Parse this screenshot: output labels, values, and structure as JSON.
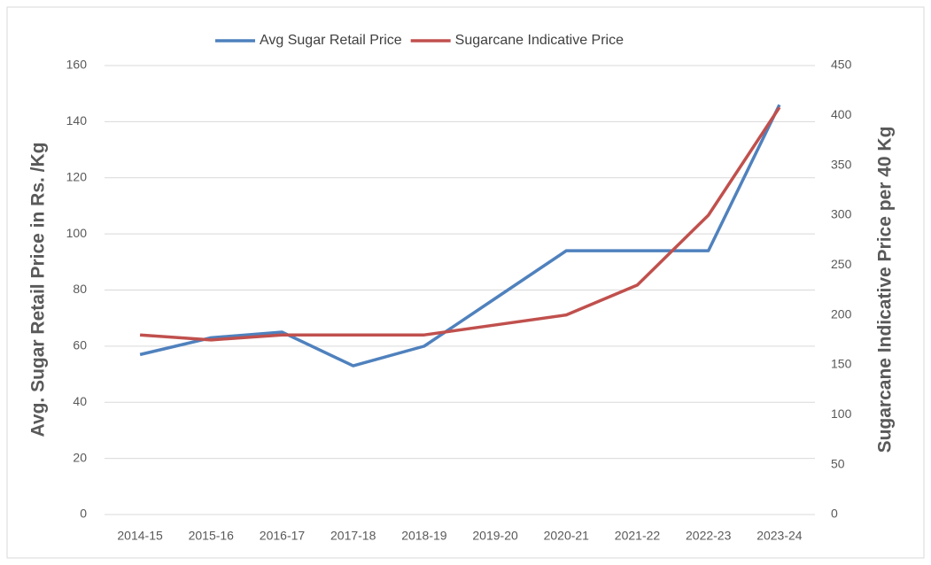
{
  "chart_data": {
    "type": "line",
    "categories": [
      "2014-15",
      "2015-16",
      "2016-17",
      "2017-18",
      "2018-19",
      "2019-20",
      "2020-21",
      "2021-22",
      "2022-23",
      "2023-24"
    ],
    "series": [
      {
        "name": "Avg Sugar Retail Price",
        "color": "#4f81bd",
        "values": [
          57,
          63,
          65,
          53,
          60,
          77,
          94,
          94,
          94,
          146
        ]
      },
      {
        "name": "Sugarcane Indicative Price",
        "color": "#c0504d",
        "axis": "y2",
        "values": [
          180,
          175,
          180,
          180,
          180,
          190,
          200,
          230,
          300,
          408
        ]
      }
    ],
    "ylabel": "Avg. Sugar Retail Price in Rs. /Kg",
    "y2label": "Sugarcane Indicative Price per 40 Kg",
    "ylim": [
      0,
      160
    ],
    "yticks": [
      0,
      20,
      40,
      60,
      80,
      100,
      120,
      140,
      160
    ],
    "y2lim": [
      0,
      450
    ],
    "y2ticks": [
      0,
      50,
      100,
      150,
      200,
      250,
      300,
      350,
      400,
      450
    ],
    "grid": true,
    "legend": "top"
  }
}
